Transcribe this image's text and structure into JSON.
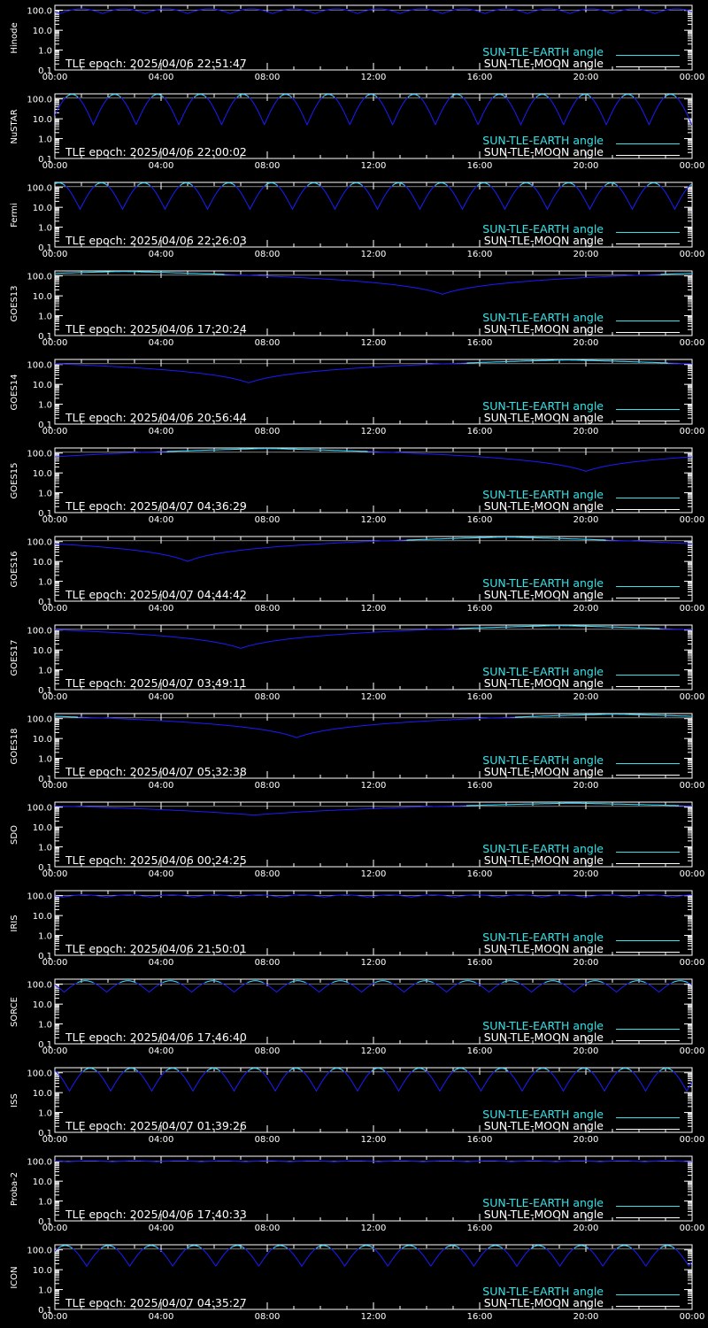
{
  "figure": {
    "colors": {
      "background": "#000000",
      "axes": "#ffffff",
      "earth": "#33e3e8",
      "earth_dip": "#1b1bff",
      "moon": "#ffffff"
    },
    "x_tick_labels": [
      "00:00",
      "04:00",
      "08:00",
      "12:00",
      "16:00",
      "20:00",
      "00:00"
    ],
    "y_tick_labels": [
      "100.0",
      "10.0",
      "1.0",
      "0.1"
    ],
    "legend": {
      "earth_label": "SUN-TLE-EARTH angle",
      "moon_label": "SUN-TLE-MOON angle"
    }
  },
  "chart_data": [
    {
      "type": "line",
      "satellite": "Hinode",
      "tle_epoch": "TLE epoch: 2025/04/06 22:51:47",
      "xlim": [
        0,
        24
      ],
      "ylim": [
        0.1,
        180
      ],
      "y_scale": "log",
      "grid": false,
      "legend_position": "bottom-right",
      "series": [
        {
          "name": "SUN-TLE-EARTH angle",
          "kind": "periodic",
          "period_h": 1.6,
          "phase_h": 0.2,
          "min": 70,
          "max": 120
        },
        {
          "name": "SUN-TLE-MOON angle",
          "kind": "flat",
          "value": 105
        }
      ]
    },
    {
      "type": "line",
      "satellite": "NuSTAR",
      "tle_epoch": "TLE epoch: 2025/04/06 22:00:02",
      "xlim": [
        0,
        24
      ],
      "ylim": [
        0.1,
        180
      ],
      "y_scale": "log",
      "grid": false,
      "legend_position": "bottom-right",
      "series": [
        {
          "name": "SUN-TLE-EARTH angle",
          "kind": "periodic",
          "period_h": 1.61,
          "phase_h": 1.45,
          "min": 5,
          "max": 170
        },
        {
          "name": "SUN-TLE-MOON angle",
          "kind": "flat",
          "value": 110
        }
      ]
    },
    {
      "type": "line",
      "satellite": "Fermi",
      "tle_epoch": "TLE epoch: 2025/04/06 22:26:03",
      "xlim": [
        0,
        24
      ],
      "ylim": [
        0.1,
        180
      ],
      "y_scale": "log",
      "grid": false,
      "legend_position": "bottom-right",
      "series": [
        {
          "name": "SUN-TLE-EARTH angle",
          "kind": "periodic",
          "period_h": 1.6,
          "phase_h": 0.95,
          "min": 8,
          "max": 170
        },
        {
          "name": "SUN-TLE-MOON angle",
          "kind": "flat",
          "value": 110
        }
      ]
    },
    {
      "type": "line",
      "satellite": "GOES13",
      "tle_epoch": "TLE epoch: 2025/04/06 17:20:24",
      "xlim": [
        0,
        24
      ],
      "ylim": [
        0.1,
        180
      ],
      "y_scale": "log",
      "grid": false,
      "legend_position": "bottom-right",
      "series": [
        {
          "name": "SUN-TLE-EARTH angle",
          "kind": "geo",
          "min_time_h": 14.6,
          "min": 12,
          "max": 170
        },
        {
          "name": "SUN-TLE-MOON angle",
          "kind": "flat",
          "value": 110
        }
      ]
    },
    {
      "type": "line",
      "satellite": "GOES14",
      "tle_epoch": "TLE epoch: 2025/04/06 20:56:44",
      "xlim": [
        0,
        24
      ],
      "ylim": [
        0.1,
        180
      ],
      "y_scale": "log",
      "grid": false,
      "legend_position": "bottom-right",
      "series": [
        {
          "name": "SUN-TLE-EARTH angle",
          "kind": "geo",
          "min_time_h": 7.3,
          "min": 12,
          "max": 170
        },
        {
          "name": "SUN-TLE-MOON angle",
          "kind": "flat",
          "value": 110
        }
      ]
    },
    {
      "type": "line",
      "satellite": "GOES15",
      "tle_epoch": "TLE epoch: 2025/04/07 04:36:29",
      "xlim": [
        0,
        24
      ],
      "ylim": [
        0.1,
        180
      ],
      "y_scale": "log",
      "grid": false,
      "legend_position": "bottom-right",
      "series": [
        {
          "name": "SUN-TLE-EARTH angle",
          "kind": "geo",
          "min_time_h": 20.0,
          "min": 12,
          "max": 170
        },
        {
          "name": "SUN-TLE-MOON angle",
          "kind": "flat",
          "value": 110
        }
      ]
    },
    {
      "type": "line",
      "satellite": "GOES16",
      "tle_epoch": "TLE epoch: 2025/04/07 04:44:42",
      "xlim": [
        0,
        24
      ],
      "ylim": [
        0.1,
        180
      ],
      "y_scale": "log",
      "grid": false,
      "legend_position": "bottom-right",
      "series": [
        {
          "name": "SUN-TLE-EARTH angle",
          "kind": "geo",
          "min_time_h": 5.0,
          "min": 10,
          "max": 170
        },
        {
          "name": "SUN-TLE-MOON angle",
          "kind": "flat",
          "value": 110
        }
      ]
    },
    {
      "type": "line",
      "satellite": "GOES17",
      "tle_epoch": "TLE epoch: 2025/04/07 03:49:11",
      "xlim": [
        0,
        24
      ],
      "ylim": [
        0.1,
        180
      ],
      "y_scale": "log",
      "grid": false,
      "legend_position": "bottom-right",
      "series": [
        {
          "name": "SUN-TLE-EARTH angle",
          "kind": "geo",
          "min_time_h": 7.0,
          "min": 12,
          "max": 170
        },
        {
          "name": "SUN-TLE-MOON angle",
          "kind": "flat",
          "value": 110
        }
      ]
    },
    {
      "type": "line",
      "satellite": "GOES18",
      "tle_epoch": "TLE epoch: 2025/04/07 05:32:38",
      "xlim": [
        0,
        24
      ],
      "ylim": [
        0.1,
        180
      ],
      "y_scale": "log",
      "grid": false,
      "legend_position": "bottom-right",
      "series": [
        {
          "name": "SUN-TLE-EARTH angle",
          "kind": "geo",
          "min_time_h": 9.1,
          "min": 11,
          "max": 170
        },
        {
          "name": "SUN-TLE-MOON angle",
          "kind": "flat",
          "value": 110
        }
      ]
    },
    {
      "type": "line",
      "satellite": "SDO",
      "tle_epoch": "TLE epoch: 2025/04/06 00:24:25",
      "xlim": [
        0,
        24
      ],
      "ylim": [
        0.1,
        180
      ],
      "y_scale": "log",
      "grid": false,
      "legend_position": "bottom-right",
      "series": [
        {
          "name": "SUN-TLE-EARTH angle",
          "kind": "geo",
          "min_time_h": 7.5,
          "min": 40,
          "max": 160
        },
        {
          "name": "SUN-TLE-MOON angle",
          "kind": "flat",
          "value": 110
        }
      ]
    },
    {
      "type": "line",
      "satellite": "IRIS",
      "tle_epoch": "TLE epoch: 2025/04/06 21:50:01",
      "xlim": [
        0,
        24
      ],
      "ylim": [
        0.1,
        180
      ],
      "y_scale": "log",
      "grid": false,
      "legend_position": "bottom-right",
      "series": [
        {
          "name": "SUN-TLE-EARTH angle",
          "kind": "periodic",
          "period_h": 1.64,
          "phase_h": 0.3,
          "min": 85,
          "max": 110
        },
        {
          "name": "SUN-TLE-MOON angle",
          "kind": "flat",
          "value": 105
        }
      ]
    },
    {
      "type": "line",
      "satellite": "SORCE",
      "tle_epoch": "TLE epoch: 2025/04/06 17:46:40",
      "xlim": [
        0,
        24
      ],
      "ylim": [
        0.1,
        180
      ],
      "y_scale": "log",
      "grid": false,
      "legend_position": "bottom-right",
      "series": [
        {
          "name": "SUN-TLE-EARTH angle",
          "kind": "periodic",
          "period_h": 1.6,
          "phase_h": 0.35,
          "min": 40,
          "max": 150
        },
        {
          "name": "SUN-TLE-MOON angle",
          "kind": "flat",
          "value": 105
        }
      ]
    },
    {
      "type": "line",
      "satellite": "ISS",
      "tle_epoch": "TLE epoch: 2025/04/07 01:39:26",
      "xlim": [
        0,
        24
      ],
      "ylim": [
        0.1,
        180
      ],
      "y_scale": "log",
      "grid": false,
      "legend_position": "bottom-right",
      "series": [
        {
          "name": "SUN-TLE-EARTH angle",
          "kind": "periodic",
          "period_h": 1.55,
          "phase_h": 0.55,
          "min": 12,
          "max": 170
        },
        {
          "name": "SUN-TLE-MOON angle",
          "kind": "flat",
          "value": 110
        }
      ]
    },
    {
      "type": "line",
      "satellite": "Proba-2",
      "tle_epoch": "TLE epoch: 2025/04/06 17:40:33",
      "xlim": [
        0,
        24
      ],
      "ylim": [
        0.1,
        180
      ],
      "y_scale": "log",
      "grid": false,
      "legend_position": "bottom-right",
      "series": [
        {
          "name": "SUN-TLE-EARTH angle",
          "kind": "periodic",
          "period_h": 1.67,
          "phase_h": 0.5,
          "min": 95,
          "max": 105
        },
        {
          "name": "SUN-TLE-MOON angle",
          "kind": "flat",
          "value": 100
        }
      ]
    },
    {
      "type": "line",
      "satellite": "ICON",
      "tle_epoch": "TLE epoch: 2025/04/07 04:35:27",
      "xlim": [
        0,
        24
      ],
      "ylim": [
        0.1,
        180
      ],
      "y_scale": "log",
      "grid": false,
      "legend_position": "bottom-right",
      "series": [
        {
          "name": "SUN-TLE-EARTH angle",
          "kind": "periodic",
          "period_h": 1.62,
          "phase_h": 1.2,
          "min": 15,
          "max": 165
        },
        {
          "name": "SUN-TLE-MOON angle",
          "kind": "flat",
          "value": 110
        }
      ]
    }
  ]
}
